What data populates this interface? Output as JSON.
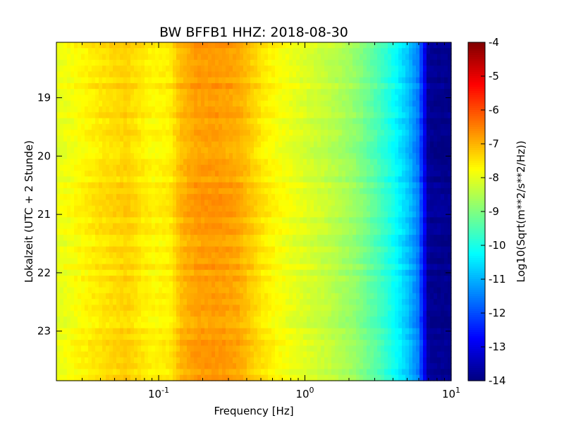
{
  "chart_data": [
    {
      "type": "heatmap",
      "title": "BW BFFB1 HHZ: 2018-08-30",
      "xlabel": "Frequency [Hz]",
      "ylabel": "Lokalzeit (UTC + 2 Stunde)",
      "x_scale": "log",
      "xlim": [
        0.02,
        10
      ],
      "ylim": [
        18.05,
        23.85
      ],
      "y_inverted": true,
      "x_ticks": [
        {
          "value": 0.1,
          "base": "10",
          "exp": "-1"
        },
        {
          "value": 1,
          "base": "10",
          "exp": "0"
        },
        {
          "value": 10,
          "base": "10",
          "exp": "1"
        }
      ],
      "y_ticks": [
        {
          "value": 19,
          "label": "19"
        },
        {
          "value": 20,
          "label": "20"
        },
        {
          "value": 21,
          "label": "21"
        },
        {
          "value": 22,
          "label": "22"
        },
        {
          "value": 23,
          "label": "23"
        }
      ],
      "z_profile": {
        "frequency_hz": [
          0.02,
          0.04,
          0.06,
          0.09,
          0.12,
          0.14,
          0.18,
          0.25,
          0.35,
          0.5,
          0.7,
          1.0,
          1.5,
          2.2,
          3.0,
          4.0,
          5.0,
          6.0,
          7.0,
          10
        ],
        "log10_amplitude": [
          -8.0,
          -7.5,
          -7.3,
          -7.7,
          -7.6,
          -7.1,
          -6.8,
          -6.75,
          -6.9,
          -7.5,
          -7.85,
          -8.1,
          -8.4,
          -8.8,
          -9.4,
          -10.1,
          -10.8,
          -11.6,
          -13.8,
          -13.9
        ]
      },
      "colorbar": {
        "label": "Log10(Sqrt(m**2/s**2/Hz))",
        "range": [
          -14,
          -4
        ],
        "colormap": "jet",
        "ticks": [
          "-4",
          "-5",
          "-6",
          "-7",
          "-8",
          "-9",
          "-10",
          "-11",
          "-12",
          "-13",
          "-14"
        ],
        "tick_values": [
          -4,
          -5,
          -6,
          -7,
          -8,
          -9,
          -10,
          -11,
          -12,
          -13,
          -14
        ]
      }
    }
  ]
}
